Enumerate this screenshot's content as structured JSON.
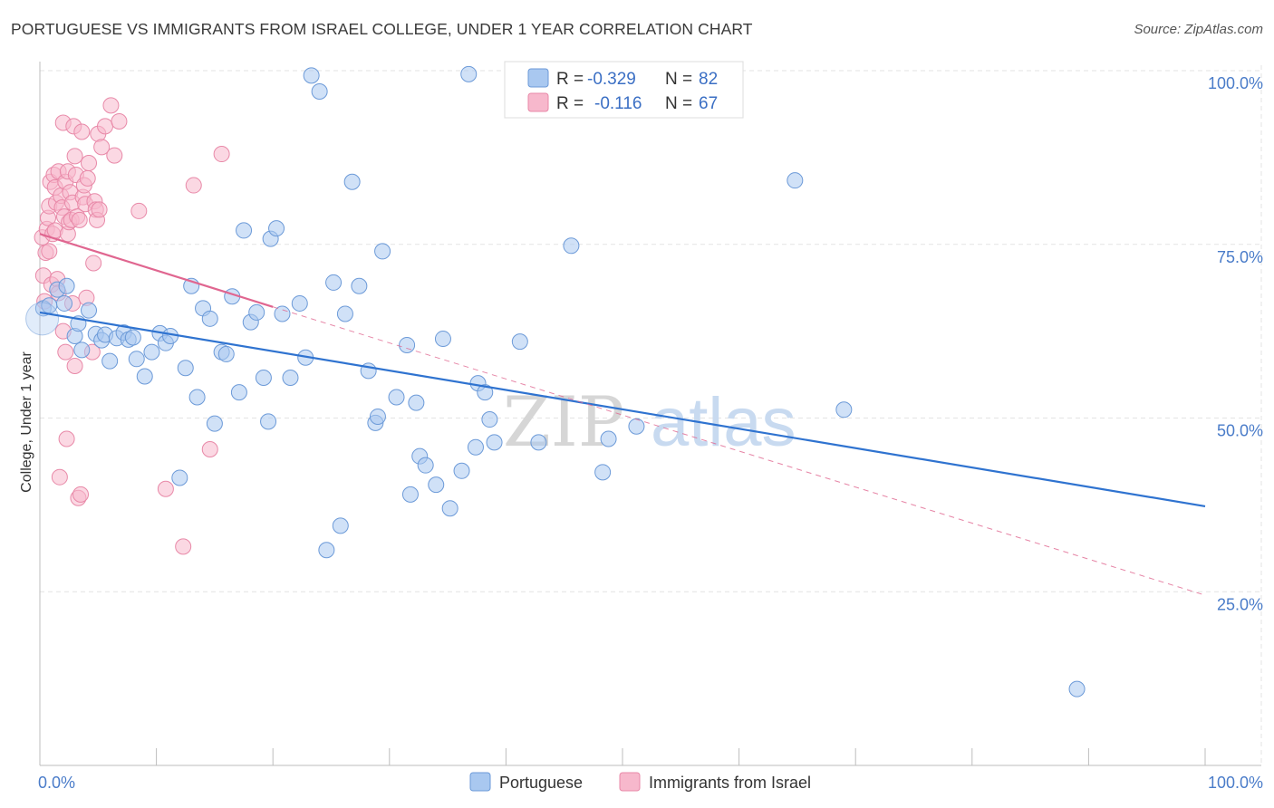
{
  "title": "PORTUGUESE VS IMMIGRANTS FROM ISRAEL COLLEGE, UNDER 1 YEAR CORRELATION CHART",
  "source": "Source: ZipAtlas.com",
  "watermark": {
    "part1": "ZIP",
    "part2": "atlas"
  },
  "colors": {
    "blue_fill": "#a9c8f0",
    "blue_stroke": "#6c9ad8",
    "blue_line": "#2f73d0",
    "pink_fill": "#f7b8cc",
    "pink_stroke": "#e889a8",
    "pink_line": "#e06690",
    "grid": "#e3e3e3",
    "tick_text": "#4a7cc9"
  },
  "legend": {
    "rows": [
      {
        "r_label": "R =",
        "r_value": "-0.329",
        "n_label": "N =",
        "n_value": "82"
      },
      {
        "r_label": "R =",
        "r_value": "-0.116",
        "n_label": "N =",
        "n_value": "67"
      }
    ]
  },
  "chart_data": {
    "type": "scatter",
    "title": "PORTUGUESE VS IMMIGRANTS FROM ISRAEL COLLEGE, UNDER 1 YEAR CORRELATION CHART",
    "xlabel": "",
    "ylabel": "College, Under 1 year",
    "xlim": [
      0,
      100
    ],
    "ylim": [
      0,
      103
    ],
    "x_tick_labels": [
      "0.0%",
      "100.0%"
    ],
    "y_ticks": [
      25,
      50,
      75,
      100
    ],
    "y_tick_labels": [
      "25.0%",
      "50.0%",
      "75.0%",
      "100.0%"
    ],
    "grid": true,
    "legend_position": "bottom",
    "series": [
      {
        "name": "Portuguese",
        "R": -0.329,
        "N": 82,
        "trend": {
          "x0": 0,
          "y0": 65.2,
          "x1": 100,
          "y1": 37.3,
          "style": "solid"
        },
        "points": [
          [
            0.3,
            65.8
          ],
          [
            0.8,
            66.2
          ],
          [
            1.5,
            68.5
          ],
          [
            2.3,
            69.0
          ],
          [
            2.1,
            66.5
          ],
          [
            3.0,
            61.8
          ],
          [
            3.3,
            63.6
          ],
          [
            3.6,
            59.8
          ],
          [
            4.2,
            65.5
          ],
          [
            4.8,
            62.1
          ],
          [
            5.3,
            61.2
          ],
          [
            5.6,
            62.0
          ],
          [
            6.0,
            58.2
          ],
          [
            6.6,
            61.5
          ],
          [
            7.2,
            62.3
          ],
          [
            7.6,
            61.3
          ],
          [
            8.0,
            61.6
          ],
          [
            8.3,
            58.5
          ],
          [
            9.0,
            56.0
          ],
          [
            9.6,
            59.5
          ],
          [
            10.3,
            62.2
          ],
          [
            10.8,
            60.8
          ],
          [
            11.2,
            61.8
          ],
          [
            12.0,
            41.4
          ],
          [
            12.5,
            57.2
          ],
          [
            13.0,
            69.0
          ],
          [
            13.5,
            53.0
          ],
          [
            14.0,
            65.8
          ],
          [
            14.6,
            64.3
          ],
          [
            15.0,
            49.2
          ],
          [
            15.6,
            59.5
          ],
          [
            16.0,
            59.2
          ],
          [
            16.5,
            67.5
          ],
          [
            17.1,
            53.7
          ],
          [
            17.5,
            77.0
          ],
          [
            18.1,
            63.8
          ],
          [
            18.6,
            65.2
          ],
          [
            19.2,
            55.8
          ],
          [
            19.6,
            49.5
          ],
          [
            19.8,
            75.8
          ],
          [
            20.3,
            77.3
          ],
          [
            20.8,
            65.0
          ],
          [
            21.5,
            55.8
          ],
          [
            22.3,
            66.5
          ],
          [
            22.8,
            58.7
          ],
          [
            23.3,
            99.3
          ],
          [
            24.0,
            97.0
          ],
          [
            24.6,
            31.0
          ],
          [
            25.2,
            69.5
          ],
          [
            25.8,
            34.5
          ],
          [
            26.2,
            65.0
          ],
          [
            26.8,
            84.0
          ],
          [
            27.4,
            69.0
          ],
          [
            28.2,
            56.8
          ],
          [
            28.8,
            49.3
          ],
          [
            29.0,
            50.2
          ],
          [
            29.4,
            74.0
          ],
          [
            30.6,
            53.0
          ],
          [
            31.5,
            60.5
          ],
          [
            31.8,
            39.0
          ],
          [
            32.3,
            52.2
          ],
          [
            32.6,
            44.5
          ],
          [
            33.1,
            43.2
          ],
          [
            34.0,
            40.4
          ],
          [
            34.6,
            61.4
          ],
          [
            35.2,
            37.0
          ],
          [
            36.2,
            42.4
          ],
          [
            36.8,
            99.5
          ],
          [
            37.4,
            45.8
          ],
          [
            37.6,
            55.0
          ],
          [
            38.2,
            53.7
          ],
          [
            38.6,
            49.8
          ],
          [
            39.0,
            46.5
          ],
          [
            41.2,
            61.0
          ],
          [
            42.8,
            46.5
          ],
          [
            45.6,
            74.8
          ],
          [
            48.3,
            42.2
          ],
          [
            48.8,
            47.0
          ],
          [
            51.2,
            48.8
          ],
          [
            64.8,
            84.2
          ],
          [
            69.0,
            51.2
          ],
          [
            89.0,
            11.0
          ]
        ]
      },
      {
        "name": "Immigrants from Israel",
        "R": -0.116,
        "N": 67,
        "trend": {
          "x0": 0,
          "y0": 76.5,
          "x1": 20,
          "y1": 66.0,
          "dash_to": {
            "x": 100,
            "y": 24.5
          },
          "style": "solid-then-dashed"
        },
        "points": [
          [
            0.2,
            76.0
          ],
          [
            0.3,
            70.5
          ],
          [
            0.4,
            66.8
          ],
          [
            0.5,
            73.8
          ],
          [
            0.6,
            77.2
          ],
          [
            0.7,
            78.8
          ],
          [
            0.8,
            80.5
          ],
          [
            0.8,
            74.0
          ],
          [
            0.9,
            84.0
          ],
          [
            1.0,
            69.2
          ],
          [
            1.1,
            76.5
          ],
          [
            1.2,
            85.0
          ],
          [
            1.3,
            83.2
          ],
          [
            1.3,
            77.0
          ],
          [
            1.4,
            81.0
          ],
          [
            1.5,
            70.0
          ],
          [
            1.6,
            85.5
          ],
          [
            1.6,
            68.0
          ],
          [
            1.7,
            41.5
          ],
          [
            1.8,
            82.0
          ],
          [
            1.9,
            80.3
          ],
          [
            2.0,
            92.5
          ],
          [
            2.0,
            62.5
          ],
          [
            2.1,
            79.0
          ],
          [
            2.2,
            84.0
          ],
          [
            2.2,
            59.5
          ],
          [
            2.3,
            47.0
          ],
          [
            2.4,
            85.5
          ],
          [
            2.4,
            76.5
          ],
          [
            2.5,
            78.2
          ],
          [
            2.6,
            82.5
          ],
          [
            2.7,
            78.5
          ],
          [
            2.8,
            81.0
          ],
          [
            2.8,
            66.5
          ],
          [
            2.9,
            92.0
          ],
          [
            3.0,
            87.7
          ],
          [
            3.0,
            57.5
          ],
          [
            3.1,
            85.0
          ],
          [
            3.2,
            79.0
          ],
          [
            3.3,
            38.5
          ],
          [
            3.4,
            78.5
          ],
          [
            3.5,
            39.0
          ],
          [
            3.6,
            91.2
          ],
          [
            3.7,
            81.8
          ],
          [
            3.8,
            83.5
          ],
          [
            3.9,
            80.8
          ],
          [
            4.0,
            67.3
          ],
          [
            4.1,
            84.5
          ],
          [
            4.2,
            86.7
          ],
          [
            4.5,
            59.5
          ],
          [
            4.6,
            72.3
          ],
          [
            4.7,
            81.2
          ],
          [
            4.8,
            80.0
          ],
          [
            4.9,
            78.5
          ],
          [
            5.0,
            90.9
          ],
          [
            5.1,
            80.0
          ],
          [
            5.3,
            89.0
          ],
          [
            5.6,
            92.0
          ],
          [
            6.1,
            95.0
          ],
          [
            6.4,
            87.8
          ],
          [
            6.8,
            92.7
          ],
          [
            8.5,
            79.8
          ],
          [
            10.8,
            39.8
          ],
          [
            12.3,
            31.5
          ],
          [
            13.2,
            83.5
          ],
          [
            14.6,
            45.5
          ],
          [
            15.6,
            88.0
          ]
        ]
      }
    ]
  },
  "bottom_legend": [
    {
      "label": "Portuguese"
    },
    {
      "label": "Immigrants from Israel"
    }
  ]
}
